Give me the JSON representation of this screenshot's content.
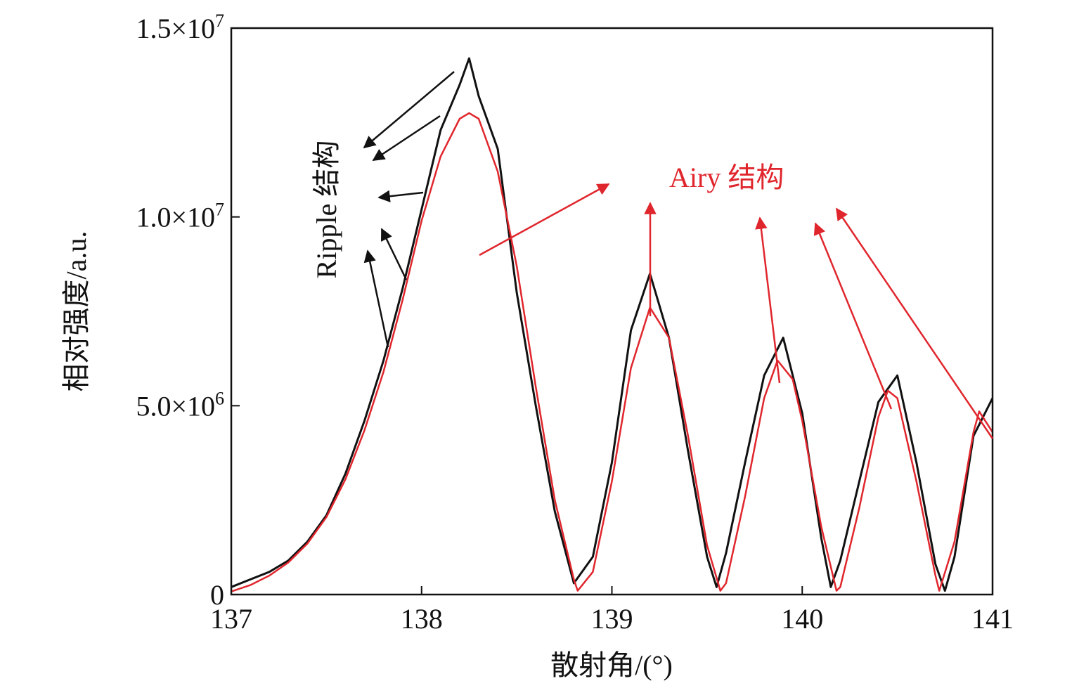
{
  "chart_data": {
    "type": "line",
    "xlabel": "散射角/(°)",
    "ylabel": "相对强度/a.u.",
    "xlim": [
      137,
      141
    ],
    "ylim": [
      0,
      15000000
    ],
    "x_ticks": [
      {
        "value": 137,
        "label": "137"
      },
      {
        "value": 138,
        "label": "138"
      },
      {
        "value": 139,
        "label": "139"
      },
      {
        "value": 140,
        "label": "140"
      },
      {
        "value": 141,
        "label": "141"
      }
    ],
    "y_ticks": [
      {
        "value": 0,
        "mantissa": "0",
        "exp": ""
      },
      {
        "value": 5000000,
        "mantissa": "5.0×10",
        "exp": "6"
      },
      {
        "value": 10000000,
        "mantissa": "1.0×10",
        "exp": "7"
      },
      {
        "value": 15000000,
        "mantissa": "1.5×10",
        "exp": "7"
      }
    ],
    "series": [
      {
        "color": "#111111",
        "x": [
          137.0,
          137.1,
          137.2,
          137.3,
          137.4,
          137.5,
          137.6,
          137.7,
          137.8,
          137.9,
          138.0,
          138.1,
          138.2,
          138.25,
          138.3,
          138.4,
          138.5,
          138.6,
          138.7,
          138.8,
          138.9,
          139.0,
          139.1,
          139.2,
          139.3,
          139.4,
          139.5,
          139.55,
          139.6,
          139.7,
          139.8,
          139.9,
          140.0,
          140.1,
          140.15,
          140.2,
          140.3,
          140.4,
          140.5,
          140.6,
          140.7,
          140.75,
          140.8,
          140.9,
          141.0
        ],
        "y": [
          200000,
          400000,
          600000,
          900000,
          1400000,
          2100000,
          3200000,
          4600000,
          6200000,
          8100000,
          10200000,
          12300000,
          13500000,
          14200000,
          13200000,
          11800000,
          8000000,
          5000000,
          2200000,
          300000,
          1000000,
          3500000,
          7000000,
          8500000,
          6800000,
          3800000,
          1000000,
          200000,
          1100000,
          3500000,
          5800000,
          6800000,
          4800000,
          1500000,
          200000,
          900000,
          3000000,
          5100000,
          5800000,
          3500000,
          800000,
          100000,
          1000000,
          4200000,
          5200000
        ]
      },
      {
        "color": "#e0262d",
        "x": [
          137.0,
          137.1,
          137.2,
          137.3,
          137.4,
          137.5,
          137.6,
          137.7,
          137.8,
          137.9,
          138.0,
          138.1,
          138.2,
          138.25,
          138.3,
          138.4,
          138.5,
          138.6,
          138.7,
          138.8,
          138.82,
          138.9,
          139.0,
          139.1,
          139.2,
          139.3,
          139.4,
          139.5,
          139.57,
          139.6,
          139.7,
          139.8,
          139.87,
          139.95,
          140.0,
          140.1,
          140.18,
          140.2,
          140.3,
          140.4,
          140.45,
          140.5,
          140.6,
          140.7,
          140.72,
          140.8,
          140.9,
          140.93,
          141.0
        ],
        "y": [
          80000,
          250000,
          500000,
          850000,
          1350000,
          2050000,
          3050000,
          4350000,
          5900000,
          7800000,
          9900000,
          11600000,
          12600000,
          12750000,
          12600000,
          11200000,
          8700000,
          5500000,
          2500000,
          400000,
          100000,
          600000,
          3000000,
          6000000,
          7600000,
          6800000,
          4200000,
          1300000,
          100000,
          300000,
          2600000,
          5200000,
          6200000,
          5700000,
          4600000,
          1800000,
          100000,
          200000,
          2300000,
          4700000,
          5400000,
          5200000,
          3000000,
          500000,
          100000,
          1400000,
          4300000,
          4850000,
          4300000
        ]
      }
    ],
    "annotations": [
      {
        "label": "Ripple 结构",
        "color": "#111111"
      },
      {
        "label": "Airy 结构",
        "color": "#e0262d"
      }
    ],
    "grid": false,
    "legend": "none"
  }
}
